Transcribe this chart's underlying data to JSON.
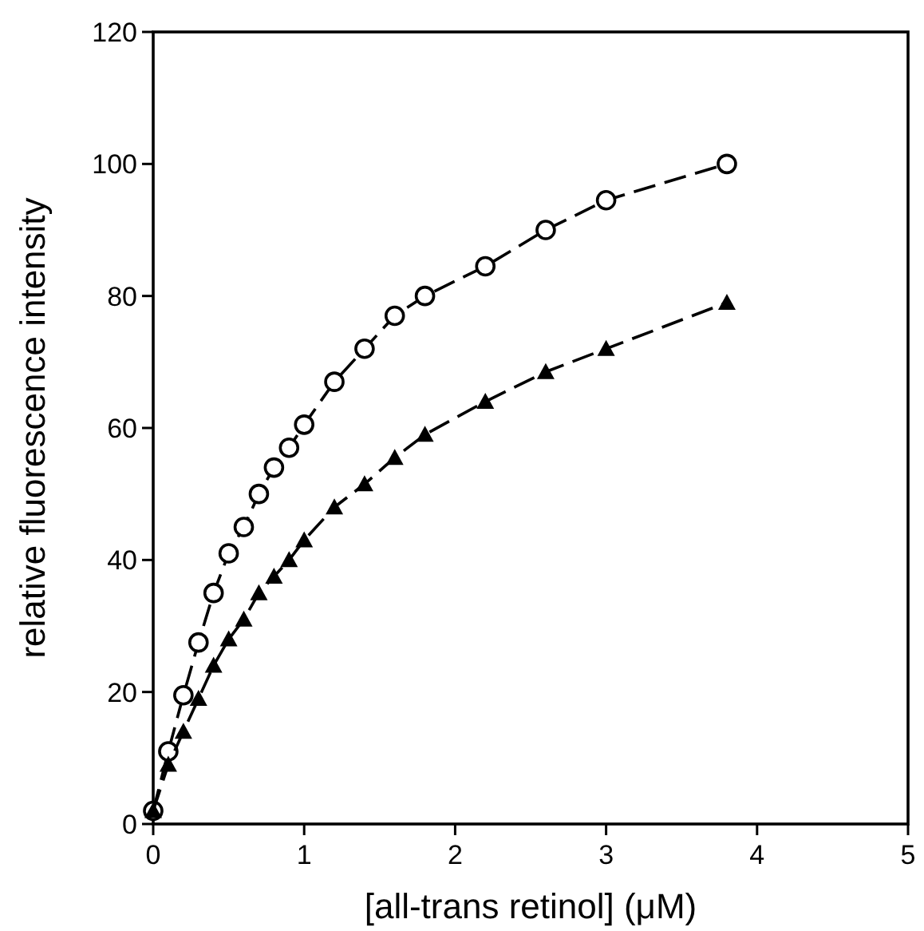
{
  "chart_data": {
    "type": "line",
    "xlabel": "[all-trans retinol] (μM)",
    "ylabel": "relative fluorescence intensity",
    "xlim": [
      0,
      5
    ],
    "xticks": [
      0,
      1,
      2,
      3,
      4,
      5
    ],
    "ylim": [
      0,
      120
    ],
    "yticks": [
      0,
      20,
      40,
      60,
      80,
      100,
      120
    ],
    "line_style": "dashed",
    "series": [
      {
        "color": "#000000",
        "marker": "circle",
        "x": [
          0,
          0.1,
          0.2,
          0.3,
          0.4,
          0.5,
          0.6,
          0.7,
          0.8,
          0.9,
          1.0,
          1.2,
          1.4,
          1.6,
          1.8,
          2.2,
          2.6,
          3.0,
          3.8
        ],
        "values": [
          2,
          11,
          19.5,
          27.5,
          35,
          41,
          45,
          50,
          54,
          57,
          60.5,
          67,
          72,
          77,
          80,
          84.5,
          90,
          94.5,
          100
        ]
      },
      {
        "color": "#000000",
        "marker": "triangle",
        "x": [
          0,
          0.1,
          0.2,
          0.3,
          0.4,
          0.5,
          0.6,
          0.7,
          0.8,
          0.9,
          1.0,
          1.2,
          1.4,
          1.6,
          1.8,
          2.2,
          2.6,
          3.0,
          3.8
        ],
        "values": [
          2,
          9,
          14,
          19,
          24,
          28,
          31,
          35,
          37.5,
          40,
          43,
          48,
          51.5,
          55.5,
          59,
          64,
          68.5,
          72,
          79
        ]
      }
    ]
  }
}
